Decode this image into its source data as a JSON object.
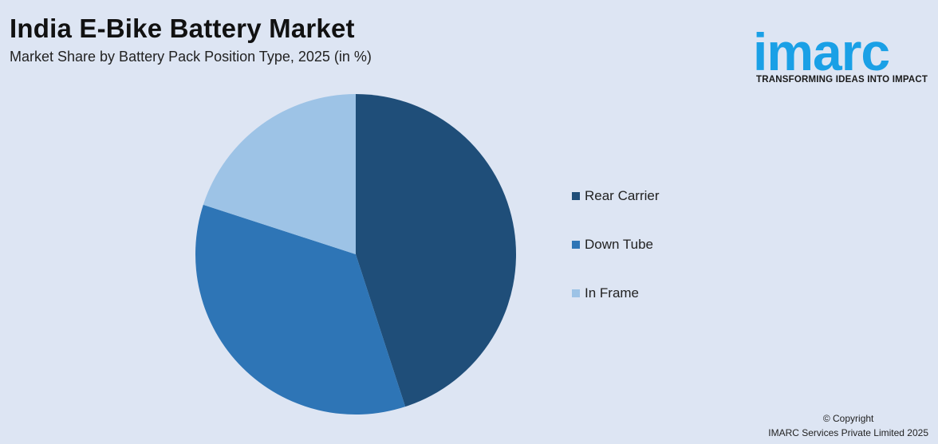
{
  "header": {
    "title": "India E-Bike Battery Market",
    "subtitle": "Market Share by Battery Pack Position Type, 2025 (in %)"
  },
  "logo": {
    "wordmark": "imarc",
    "tagline": "TRANSFORMING IDEAS INTO IMPACT",
    "color": "#1aa0e6"
  },
  "chart_data": {
    "type": "pie",
    "title": "India E-Bike Battery Market",
    "subtitle": "Market Share by Battery Pack Position Type, 2025 (in %)",
    "categories": [
      "Rear Carrier",
      "Down Tube",
      "In Frame"
    ],
    "values": [
      45,
      35,
      20
    ],
    "colors": [
      "#1f4e79",
      "#2e75b6",
      "#9dc3e6"
    ],
    "legend_position": "right",
    "start_angle": "12 o'clock",
    "direction": "clockwise"
  },
  "footer": {
    "copyright_line1": "© Copyright",
    "copyright_line2": "IMARC Services Private Limited 2025"
  }
}
